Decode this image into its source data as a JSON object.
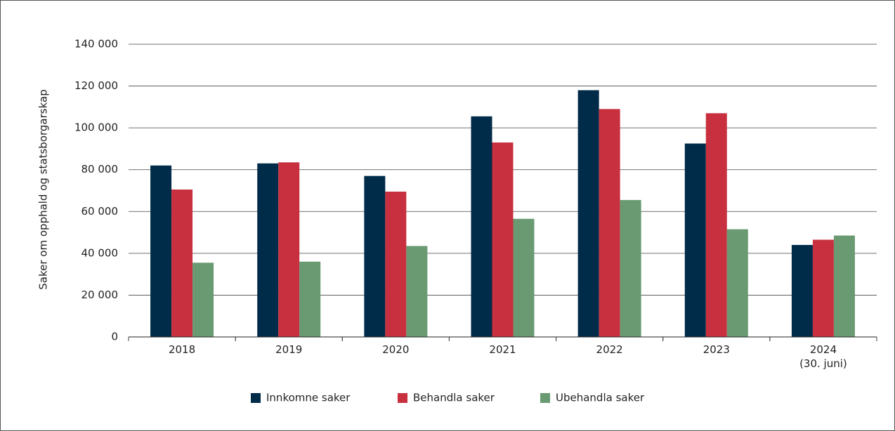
{
  "chart_data": {
    "type": "bar",
    "ylabel": "Saker om opphald og statsborgarskap",
    "categories": [
      "2018",
      "2019",
      "2020",
      "2021",
      "2022",
      "2023",
      "2024\n(30. juni)"
    ],
    "series": [
      {
        "name": "Innkomne saker",
        "color": "#002b49",
        "values": [
          82000,
          83000,
          77000,
          105500,
          118000,
          92500,
          44000
        ]
      },
      {
        "name": "Behandla saker",
        "color": "#c8303f",
        "values": [
          70500,
          83500,
          69500,
          93000,
          109000,
          107000,
          46500
        ]
      },
      {
        "name": "Ubehandla saker",
        "color": "#6a9a72",
        "values": [
          35500,
          36000,
          43500,
          56500,
          65500,
          51500,
          48500
        ]
      }
    ],
    "ylim": [
      0,
      140000
    ],
    "yticks": [
      0,
      {
        "value": 20000,
        "label": "20 000"
      },
      {
        "value": 40000,
        "label": "40 000"
      },
      {
        "value": 60000,
        "label": "60 000"
      },
      {
        "value": 80000,
        "label": "80 000"
      },
      {
        "value": 100000,
        "label": "100 000"
      },
      {
        "value": 120000,
        "label": "120 000"
      },
      {
        "value": 140000,
        "label": "140 000"
      }
    ],
    "grid": true,
    "legend": "bottom"
  }
}
